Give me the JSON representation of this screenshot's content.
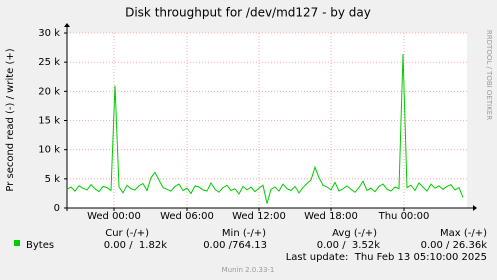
{
  "chart_data": {
    "type": "line",
    "title": "Disk throughput for /dev/md127 - by day",
    "y_label": "Pr second read (-) / write (+)",
    "side_text": "RRDTOOL / TOBI OETIKER",
    "xlim": [
      0,
      100
    ],
    "xticks": [
      {
        "value": 11.75,
        "label": "Wed 00:00"
      },
      {
        "value": 30,
        "label": "Wed 06:00"
      },
      {
        "value": 48,
        "label": "Wed 12:00"
      },
      {
        "value": 66,
        "label": "Wed 18:00"
      },
      {
        "value": 84.25,
        "label": "Thu 00:00"
      }
    ],
    "ylim": [
      0,
      30000
    ],
    "yticks": [
      0,
      {
        "value": 5000,
        "label": "5 k"
      },
      {
        "value": 10000,
        "label": "10 k"
      },
      {
        "value": 15000,
        "label": "15 k"
      },
      {
        "value": 20000,
        "label": "20 k"
      },
      {
        "value": 25000,
        "label": "25 k"
      },
      {
        "value": 30000,
        "label": "30 k"
      }
    ],
    "grid": true,
    "series": [
      {
        "name": "Bytes",
        "color": "#00cc00",
        "values": [
          3200,
          3600,
          2900,
          3800,
          3400,
          3100,
          4000,
          3300,
          2800,
          3700,
          3500,
          3000,
          21000,
          3600,
          2600,
          3900,
          3300,
          3100,
          3800,
          4200,
          3000,
          5200,
          6100,
          4800,
          3500,
          3200,
          2900,
          3700,
          4100,
          3000,
          3400,
          2500,
          3800,
          3600,
          3100,
          2900,
          4300,
          3200,
          2700,
          3500,
          3900,
          3000,
          3300,
          2400,
          3700,
          3100,
          3600,
          2800,
          3400,
          3900,
          764.13,
          3200,
          3600,
          2900,
          4100,
          3300,
          3000,
          3700,
          2600,
          3500,
          4200,
          4800,
          7000,
          5200,
          3900,
          3600,
          3100,
          4400,
          2900,
          3300,
          3800,
          3200,
          2700,
          3500,
          4600,
          3000,
          3400,
          2800,
          3700,
          4100,
          3200,
          2900,
          3600,
          3300,
          26400,
          3500,
          3900,
          3000,
          4300,
          3600,
          2900,
          4100,
          3400,
          3800,
          3200,
          3700,
          4000,
          3100,
          3500,
          1820
        ]
      }
    ],
    "legend_table": {
      "headers": [
        "Cur (-/+)",
        "Min (-/+)",
        "Avg (-/+)",
        "Max (-/+)"
      ],
      "cells": [
        "0.00 /  1.82k",
        "0.00 /764.13",
        "0.00 /  3.52k",
        "0.00 / 26.36k"
      ]
    },
    "last_update": "Last update:  Thu Feb 13 05:10:00 2025",
    "footer": "Munin 2.0.33-1"
  }
}
